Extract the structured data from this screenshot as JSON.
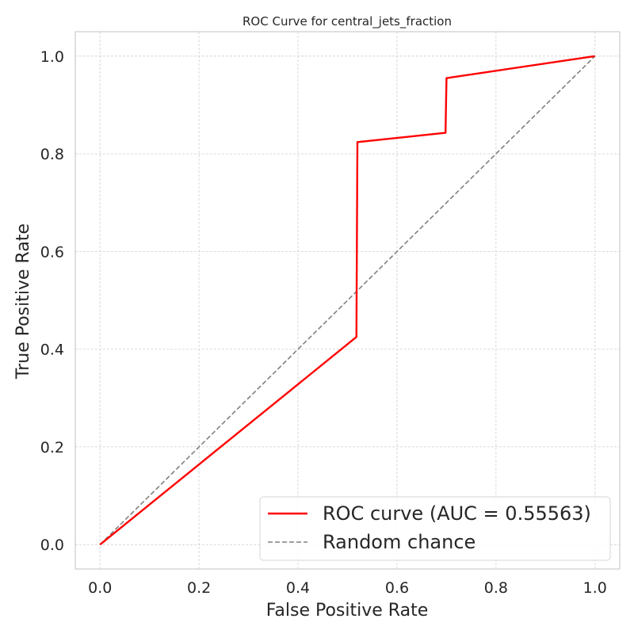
{
  "chart_data": {
    "type": "line",
    "title": "ROC Curve for central_jets_fraction",
    "xlabel": "False Positive Rate",
    "ylabel": "True Positive Rate",
    "xlim": [
      -0.05,
      1.05
    ],
    "ylim": [
      -0.05,
      1.05
    ],
    "xticks": [
      "0.0",
      "0.2",
      "0.4",
      "0.6",
      "0.8",
      "1.0"
    ],
    "yticks": [
      "0.0",
      "0.2",
      "0.4",
      "0.6",
      "0.8",
      "1.0"
    ],
    "grid": true,
    "legend_position": "lower-right",
    "series": [
      {
        "name": "ROC curve (AUC = 0.55563)",
        "color": "#ff0000",
        "style": "solid",
        "x": [
          0.0,
          0.518,
          0.52,
          0.698,
          0.7,
          1.0
        ],
        "y": [
          0.0,
          0.425,
          0.824,
          0.843,
          0.955,
          1.0
        ]
      },
      {
        "name": "Random chance",
        "color": "#808080",
        "style": "dashed",
        "x": [
          0.0,
          1.0
        ],
        "y": [
          0.0,
          1.0
        ]
      }
    ]
  }
}
